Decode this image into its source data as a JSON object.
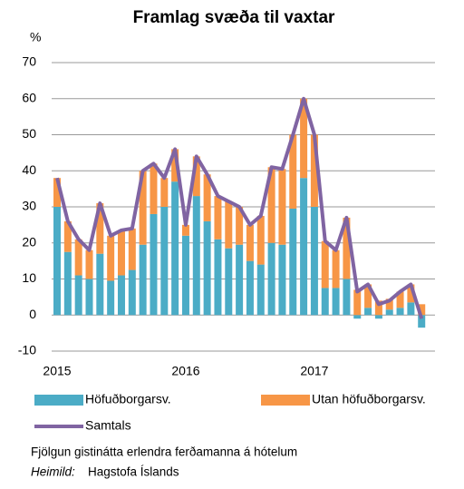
{
  "chart_data": {
    "type": "bar_line",
    "title": "Framlag svæða til vaxtar",
    "y_label": "%",
    "categories": [
      "2015",
      null,
      null,
      null,
      null,
      null,
      null,
      null,
      null,
      null,
      null,
      null,
      "2016",
      null,
      null,
      null,
      null,
      null,
      null,
      null,
      null,
      null,
      null,
      null,
      "2017",
      null,
      null,
      null,
      null,
      null,
      null,
      null,
      null,
      null,
      null
    ],
    "series": [
      {
        "name": "Höfuðborgarsv.",
        "color": "#4bacc6",
        "kind": "bar",
        "values": [
          30,
          17.5,
          11,
          10,
          17,
          9.5,
          11,
          12.5,
          19.5,
          28,
          30,
          37,
          22,
          33,
          26,
          21,
          18.5,
          19.5,
          15,
          14,
          20,
          19.5,
          29.5,
          38,
          30,
          7.5,
          7.5,
          10,
          -1,
          2,
          -1,
          1.5,
          2,
          3.5,
          -3.5
        ]
      },
      {
        "name": "Utan höfuðborgarsv.",
        "color": "#f79646",
        "kind": "bar",
        "values": [
          8,
          8.5,
          10,
          8,
          14,
          12.5,
          12.5,
          11.5,
          20.5,
          14,
          8,
          9,
          3,
          11,
          13,
          12,
          13,
          10.5,
          10,
          13.5,
          21,
          21,
          20.5,
          22,
          20,
          13,
          10.5,
          17,
          7,
          6.5,
          4,
          3,
          4.5,
          5,
          3
        ]
      },
      {
        "name": "Samtals",
        "color": "#8064a2",
        "kind": "line",
        "values": [
          38,
          26,
          21,
          18,
          31,
          22,
          23.5,
          24,
          40,
          42,
          38,
          46,
          25,
          44,
          39,
          33,
          31.5,
          30,
          25,
          27.5,
          41,
          40.5,
          50,
          60,
          50,
          20.5,
          18,
          27,
          6.5,
          8.5,
          3,
          4,
          6.5,
          8.5,
          -1
        ]
      }
    ],
    "ylim": [
      -10,
      70
    ],
    "yticks": [
      -10,
      0,
      10,
      20,
      30,
      40,
      50,
      60,
      70
    ],
    "grid": true,
    "note": "Fjölgun gistinátta erlendra ferðamanna á hótelum",
    "source_label": "Heimild:",
    "source": "Hagstofa Íslands"
  }
}
